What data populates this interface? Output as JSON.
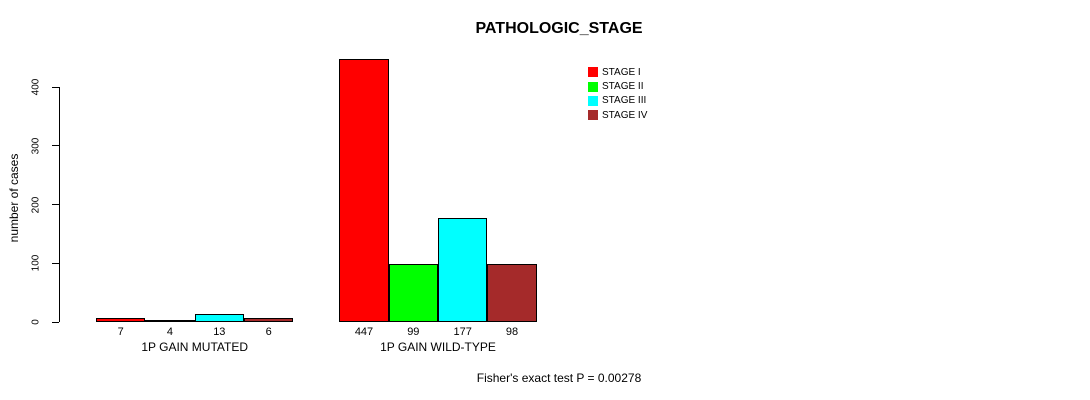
{
  "chart_data": {
    "type": "bar",
    "title": "PATHOLOGIC_STAGE",
    "ylabel": "number of cases",
    "xlabel": "",
    "categories": [
      "1P GAIN MUTATED",
      "1P GAIN WILD-TYPE"
    ],
    "series": [
      {
        "name": "STAGE I",
        "color": "#FF0000",
        "values": [
          7,
          447
        ]
      },
      {
        "name": "STAGE II",
        "color": "#00FF00",
        "values": [
          4,
          99
        ]
      },
      {
        "name": "STAGE III",
        "color": "#00FFFF",
        "values": [
          13,
          177
        ]
      },
      {
        "name": "STAGE IV",
        "color": "#A52A2A",
        "values": [
          6,
          98
        ]
      }
    ],
    "bar_value_labels": [
      [
        7,
        4,
        13,
        6
      ],
      [
        447,
        99,
        177,
        98
      ]
    ],
    "yticks": [
      0,
      100,
      200,
      300,
      400
    ],
    "ylim": [
      0,
      455
    ],
    "grid": false,
    "legend_position": "top-center",
    "legend_entries": [
      "STAGE I",
      "STAGE II",
      "STAGE III",
      "STAGE IV"
    ],
    "annotation": "Fisher's exact test P = 0.00278",
    "colors": {
      "stage_i": "#FF0000",
      "stage_ii": "#00FF00",
      "stage_iii": "#00FFFF",
      "stage_iv": "#A52A2A",
      "axis": "#000000",
      "background": "#FFFFFF"
    }
  }
}
